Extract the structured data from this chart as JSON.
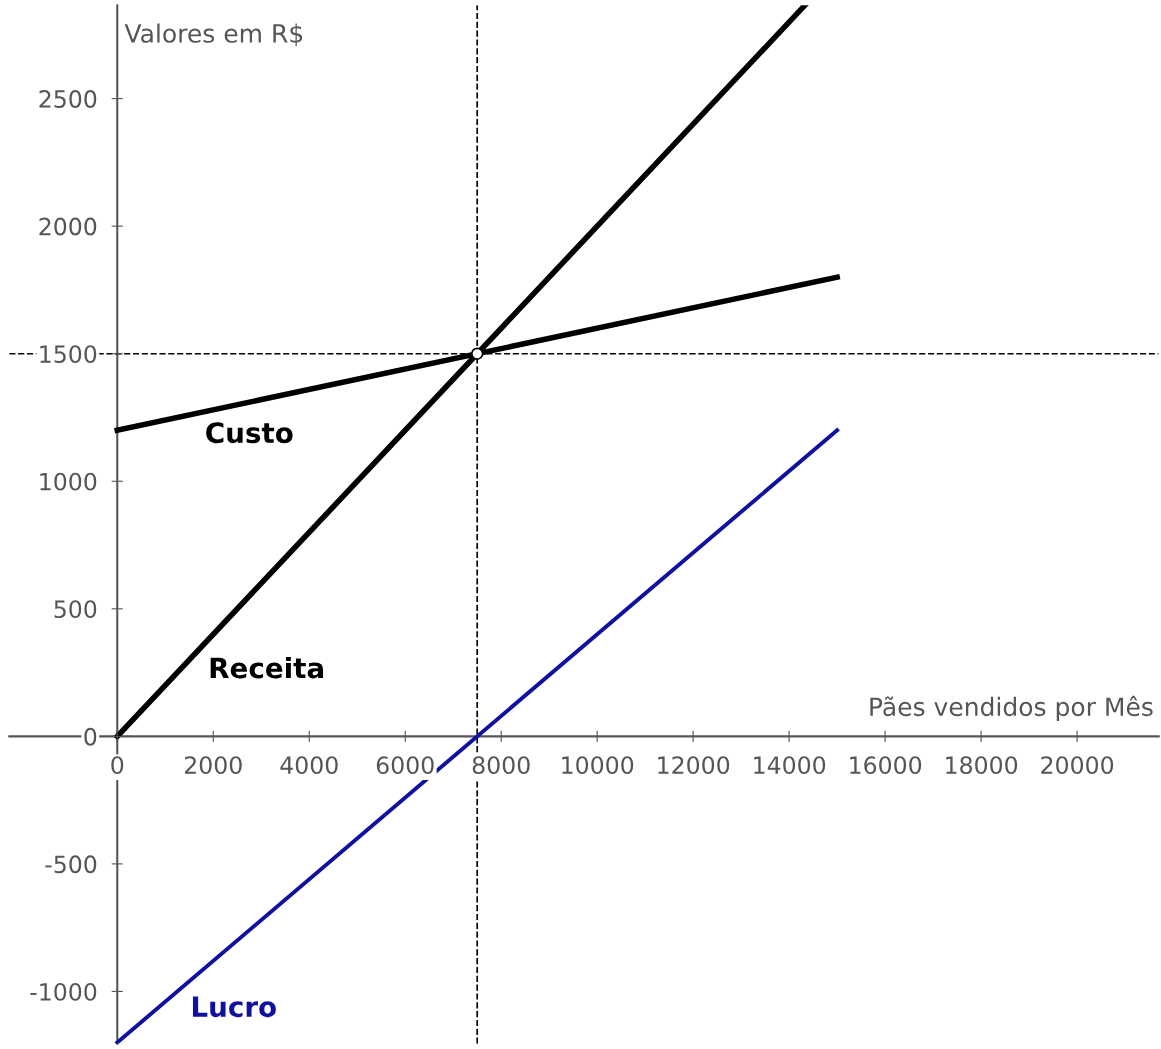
{
  "chart_data": {
    "type": "line",
    "ylabel": "Valores em R$",
    "xlabel": "Pães vendidos por Mês",
    "xlim": [
      -2250,
      21700
    ],
    "ylim": [
      -1205,
      2866
    ],
    "xticks": [
      0,
      2000,
      4000,
      6000,
      8000,
      10000,
      12000,
      14000,
      16000,
      18000,
      20000
    ],
    "yticks": [
      -1000,
      -500,
      0,
      500,
      1000,
      1500,
      2000,
      2500
    ],
    "grid": false,
    "line_style": "solid",
    "series": [
      {
        "name": "Receita",
        "color": "#000000",
        "x": [
          0,
          14330
        ],
        "values": [
          0,
          2866
        ]
      },
      {
        "name": "Custo",
        "color": "#000000",
        "x": [
          0,
          15000
        ],
        "values": [
          1200,
          1800
        ]
      },
      {
        "name": "Lucro",
        "color": "#1010a0",
        "x": [
          0,
          15000
        ],
        "values": [
          -1200,
          1200
        ]
      },
      {
        "type": "scatter",
        "marker": "circle",
        "color": "#ffffff",
        "x": [
          7500
        ],
        "values": [
          1500
        ]
      }
    ],
    "ref_lines": [
      {
        "axis": "x",
        "value": 7500,
        "color": "#000000",
        "line_style": "dashed"
      },
      {
        "axis": "y",
        "value": 1500,
        "color": "#000000",
        "line_style": "dashed"
      }
    ],
    "legend": false
  }
}
